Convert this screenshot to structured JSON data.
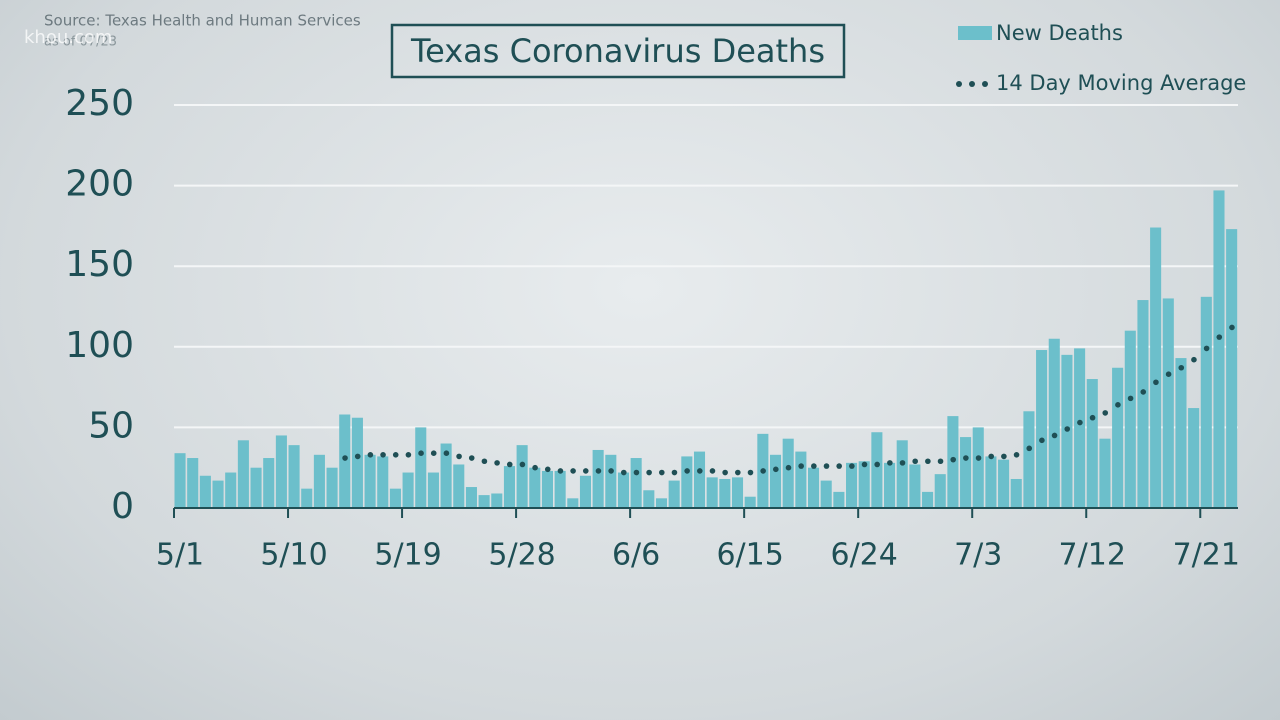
{
  "chart_data": {
    "type": "bar",
    "title": "Texas Coronavirus Deaths",
    "source": "Source: Texas Health and Human Services",
    "as_of": "as of 07/23",
    "watermark": "khou.com",
    "categories": [
      "5/1",
      null,
      null,
      null,
      null,
      null,
      null,
      null,
      null,
      "5/10",
      null,
      null,
      null,
      null,
      null,
      null,
      null,
      null,
      "5/19",
      null,
      null,
      null,
      null,
      null,
      null,
      null,
      null,
      "5/28",
      null,
      null,
      null,
      null,
      null,
      null,
      null,
      null,
      "6/6",
      null,
      null,
      null,
      null,
      null,
      null,
      null,
      null,
      "6/15",
      null,
      null,
      null,
      null,
      null,
      null,
      null,
      null,
      "6/24",
      null,
      null,
      null,
      null,
      null,
      null,
      null,
      null,
      "7/3",
      null,
      null,
      null,
      null,
      null,
      null,
      null,
      null,
      "7/12",
      null,
      null,
      null,
      null,
      null,
      null,
      null,
      null,
      "7/21",
      null,
      null
    ],
    "series": [
      {
        "name": "New Deaths",
        "type": "bar",
        "color": "#6cbfcb",
        "values": [
          34,
          31,
          20,
          17,
          22,
          42,
          25,
          31,
          45,
          39,
          12,
          33,
          25,
          58,
          56,
          33,
          32,
          12,
          22,
          50,
          22,
          40,
          27,
          13,
          8,
          9,
          26,
          39,
          25,
          23,
          23,
          6,
          20,
          36,
          33,
          22,
          31,
          11,
          6,
          17,
          32,
          35,
          19,
          18,
          19,
          7,
          46,
          33,
          43,
          35,
          25,
          17,
          10,
          28,
          29,
          47,
          28,
          42,
          27,
          10,
          21,
          57,
          44,
          50,
          32,
          30,
          18,
          60,
          98,
          105,
          95,
          99,
          80,
          43,
          87,
          110,
          129,
          174,
          130,
          93,
          62,
          131,
          197,
          173
        ]
      },
      {
        "name": "14 Day Moving Average",
        "type": "dotted-line",
        "color": "#1f4f55",
        "values": [
          null,
          null,
          null,
          null,
          null,
          null,
          null,
          null,
          null,
          null,
          null,
          null,
          null,
          31,
          32,
          33,
          33,
          33,
          33,
          34,
          34,
          34,
          32,
          31,
          29,
          28,
          27,
          27,
          25,
          24,
          23,
          23,
          23,
          23,
          23,
          22,
          22,
          22,
          22,
          22,
          23,
          23,
          23,
          22,
          22,
          22,
          23,
          24,
          25,
          26,
          26,
          26,
          26,
          26,
          27,
          27,
          28,
          28,
          29,
          29,
          29,
          30,
          31,
          31,
          32,
          32,
          33,
          37,
          42,
          45,
          49,
          53,
          56,
          59,
          64,
          68,
          72,
          78,
          83,
          87,
          92,
          99,
          106,
          112
        ]
      }
    ],
    "ylim": [
      0,
      250
    ],
    "yticks": [
      0,
      50,
      100,
      150,
      200,
      250
    ],
    "grid": true
  }
}
